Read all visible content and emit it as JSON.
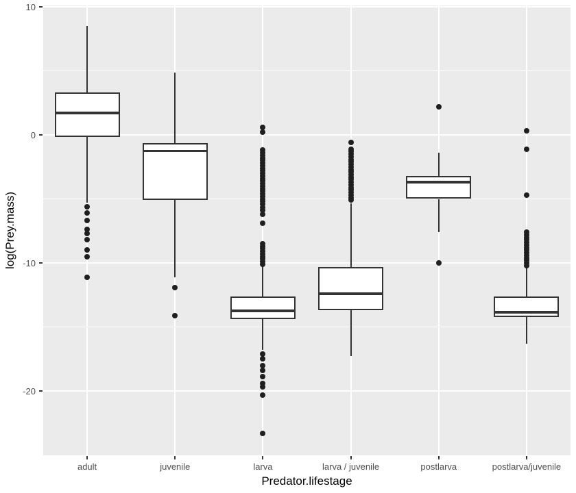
{
  "chart_data": {
    "type": "boxplot",
    "title": "",
    "xlabel": "Predator.lifestage",
    "ylabel": "log(Prey.mass)",
    "ylim": [
      -25.0,
      10.1
    ],
    "grid": true,
    "legend": "none",
    "yticks": {
      "major": [
        {
          "value": 10,
          "label": "10"
        },
        {
          "value": 0,
          "label": "0"
        },
        {
          "value": -10,
          "label": "-10"
        },
        {
          "value": -20,
          "label": "-20"
        }
      ],
      "minor": [
        5,
        -5,
        -15
      ]
    },
    "categories": [
      "adult",
      "juvenile",
      "larva",
      "larva / juvenile",
      "postlarva",
      "postlarva/juvenile"
    ],
    "boxes": [
      {
        "category": "adult",
        "whisker_low": -5.3,
        "q1": -0.15,
        "median": 1.7,
        "q3": 3.3,
        "whisker_high": 8.5,
        "outliers": [
          -5.6,
          -6.1,
          -6.7,
          -7.4,
          -7.7,
          -8.2,
          -9.0,
          -9.5,
          -11.1
        ]
      },
      {
        "category": "juvenile",
        "whisker_low": -11.1,
        "q1": -5.1,
        "median": -1.25,
        "q3": -0.65,
        "whisker_high": 4.85,
        "outliers": [
          -11.9,
          -14.1
        ]
      },
      {
        "category": "larva",
        "whisker_low": -16.8,
        "q1": -14.4,
        "median": -13.75,
        "q3": -12.6,
        "whisker_high": -10.15,
        "outliers": [
          0.6,
          0.2,
          -1.2,
          -1.4,
          -1.6,
          -1.8,
          -2.0,
          -2.2,
          -2.4,
          -2.6,
          -2.8,
          -3.0,
          -3.2,
          -3.4,
          -3.6,
          -3.8,
          -4.0,
          -4.2,
          -4.4,
          -4.6,
          -4.8,
          -5.0,
          -5.2,
          -5.4,
          -5.65,
          -5.9,
          -6.2,
          -6.9,
          -8.5,
          -8.7,
          -8.9,
          -9.1,
          -9.3,
          -9.5,
          -9.7,
          -9.9,
          -10.1,
          -17.1,
          -17.5,
          -18.0,
          -18.4,
          -18.9,
          -19.4,
          -19.7,
          -20.3,
          -23.3
        ]
      },
      {
        "category": "larva / juvenile",
        "whisker_low": -17.3,
        "q1": -13.7,
        "median": -12.4,
        "q3": -10.3,
        "whisker_high": -5.35,
        "outliers": [
          -0.6,
          -1.1,
          -1.3,
          -1.5,
          -1.7,
          -1.9,
          -2.1,
          -2.3,
          -2.5,
          -2.7,
          -2.9,
          -3.1,
          -3.3,
          -3.5,
          -3.7,
          -3.9,
          -4.1,
          -4.3,
          -4.5,
          -4.7,
          -4.9,
          -5.1
        ]
      },
      {
        "category": "postlarva",
        "whisker_low": -7.6,
        "q1": -5.0,
        "median": -3.7,
        "q3": -3.2,
        "whisker_high": -1.4,
        "outliers": [
          2.2,
          -10.0
        ]
      },
      {
        "category": "postlarva/juvenile",
        "whisker_low": -16.3,
        "q1": -14.2,
        "median": -13.85,
        "q3": -12.6,
        "whisker_high": -10.2,
        "outliers": [
          0.3,
          -1.1,
          -4.7,
          -7.6,
          -7.8,
          -8.0,
          -8.2,
          -8.4,
          -8.6,
          -8.8,
          -9.0,
          -9.2,
          -9.4,
          -9.6,
          -9.8,
          -10.0,
          -10.2
        ]
      }
    ],
    "colors": {
      "panel_bg": "#EBEBEB",
      "grid": "#FFFFFF",
      "box_fill": "#FFFFFF",
      "box_stroke": "#333333",
      "point": "#1F1F1F",
      "tick_mark": "#333333",
      "tick_label": "#4D4D4D",
      "axis_title": "#000000",
      "figure_bg": "#FFFFFF"
    }
  }
}
